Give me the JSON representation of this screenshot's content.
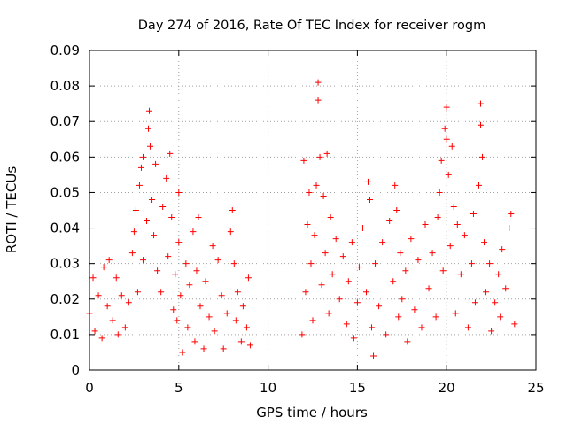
{
  "chart_data": {
    "type": "scatter",
    "title": "Day 274 of 2016, Rate Of TEC Index for receiver rogm",
    "xlabel": "GPS time / hours",
    "ylabel": "ROTI / TECUs",
    "xlim": [
      0,
      25
    ],
    "ylim": [
      0,
      0.09
    ],
    "x_ticks": [
      "0",
      "5",
      "10",
      "15",
      "20",
      "25"
    ],
    "y_ticks": [
      "0",
      "0.01",
      "0.02",
      "0.03",
      "0.04",
      "0.05",
      "0.06",
      "0.07",
      "0.08",
      "0.09"
    ],
    "grid": true,
    "marker": "+",
    "color": "#ff0000",
    "series": [
      {
        "name": "ROTI",
        "points": [
          [
            0.0,
            0.016
          ],
          [
            0.2,
            0.026
          ],
          [
            0.3,
            0.011
          ],
          [
            0.5,
            0.021
          ],
          [
            0.7,
            0.009
          ],
          [
            0.8,
            0.029
          ],
          [
            1.0,
            0.018
          ],
          [
            1.1,
            0.031
          ],
          [
            1.3,
            0.014
          ],
          [
            1.5,
            0.026
          ],
          [
            1.6,
            0.01
          ],
          [
            1.8,
            0.021
          ],
          [
            2.0,
            0.012
          ],
          [
            2.2,
            0.019
          ],
          [
            2.4,
            0.033
          ],
          [
            2.5,
            0.039
          ],
          [
            2.6,
            0.045
          ],
          [
            2.7,
            0.022
          ],
          [
            2.8,
            0.052
          ],
          [
            2.9,
            0.057
          ],
          [
            3.0,
            0.06
          ],
          [
            3.0,
            0.031
          ],
          [
            3.2,
            0.042
          ],
          [
            3.3,
            0.068
          ],
          [
            3.35,
            0.073
          ],
          [
            3.4,
            0.063
          ],
          [
            3.5,
            0.048
          ],
          [
            3.6,
            0.038
          ],
          [
            3.7,
            0.058
          ],
          [
            3.8,
            0.028
          ],
          [
            4.0,
            0.022
          ],
          [
            4.1,
            0.046
          ],
          [
            4.3,
            0.054
          ],
          [
            4.4,
            0.032
          ],
          [
            4.5,
            0.061
          ],
          [
            4.6,
            0.043
          ],
          [
            4.7,
            0.017
          ],
          [
            4.8,
            0.027
          ],
          [
            4.9,
            0.014
          ],
          [
            5.0,
            0.036
          ],
          [
            5.0,
            0.05
          ],
          [
            5.1,
            0.021
          ],
          [
            5.2,
            0.005
          ],
          [
            5.4,
            0.03
          ],
          [
            5.5,
            0.012
          ],
          [
            5.6,
            0.024
          ],
          [
            5.8,
            0.039
          ],
          [
            5.9,
            0.008
          ],
          [
            6.0,
            0.028
          ],
          [
            6.1,
            0.043
          ],
          [
            6.2,
            0.018
          ],
          [
            6.4,
            0.006
          ],
          [
            6.5,
            0.025
          ],
          [
            6.7,
            0.015
          ],
          [
            6.9,
            0.035
          ],
          [
            7.0,
            0.011
          ],
          [
            7.2,
            0.031
          ],
          [
            7.4,
            0.021
          ],
          [
            7.5,
            0.006
          ],
          [
            7.7,
            0.016
          ],
          [
            7.9,
            0.039
          ],
          [
            8.0,
            0.045
          ],
          [
            8.1,
            0.03
          ],
          [
            8.2,
            0.014
          ],
          [
            8.3,
            0.022
          ],
          [
            8.5,
            0.008
          ],
          [
            8.6,
            0.018
          ],
          [
            8.8,
            0.012
          ],
          [
            8.9,
            0.026
          ],
          [
            9.0,
            0.007
          ],
          [
            11.9,
            0.01
          ],
          [
            12.0,
            0.059
          ],
          [
            12.1,
            0.022
          ],
          [
            12.2,
            0.041
          ],
          [
            12.3,
            0.05
          ],
          [
            12.4,
            0.03
          ],
          [
            12.5,
            0.014
          ],
          [
            12.6,
            0.038
          ],
          [
            12.7,
            0.052
          ],
          [
            12.8,
            0.081
          ],
          [
            12.8,
            0.076
          ],
          [
            12.9,
            0.06
          ],
          [
            13.0,
            0.024
          ],
          [
            13.1,
            0.049
          ],
          [
            13.2,
            0.033
          ],
          [
            13.3,
            0.061
          ],
          [
            13.4,
            0.016
          ],
          [
            13.5,
            0.043
          ],
          [
            13.6,
            0.027
          ],
          [
            13.8,
            0.037
          ],
          [
            14.0,
            0.02
          ],
          [
            14.2,
            0.032
          ],
          [
            14.4,
            0.013
          ],
          [
            14.5,
            0.025
          ],
          [
            14.7,
            0.036
          ],
          [
            14.8,
            0.009
          ],
          [
            15.0,
            0.019
          ],
          [
            15.1,
            0.029
          ],
          [
            15.3,
            0.04
          ],
          [
            15.5,
            0.022
          ],
          [
            15.6,
            0.053
          ],
          [
            15.7,
            0.048
          ],
          [
            15.8,
            0.012
          ],
          [
            15.9,
            0.004
          ],
          [
            16.0,
            0.03
          ],
          [
            16.2,
            0.018
          ],
          [
            16.4,
            0.036
          ],
          [
            16.6,
            0.01
          ],
          [
            16.8,
            0.042
          ],
          [
            17.0,
            0.025
          ],
          [
            17.1,
            0.052
          ],
          [
            17.2,
            0.045
          ],
          [
            17.3,
            0.015
          ],
          [
            17.4,
            0.033
          ],
          [
            17.5,
            0.02
          ],
          [
            17.7,
            0.028
          ],
          [
            17.8,
            0.008
          ],
          [
            18.0,
            0.037
          ],
          [
            18.2,
            0.017
          ],
          [
            18.4,
            0.031
          ],
          [
            18.6,
            0.012
          ],
          [
            18.8,
            0.041
          ],
          [
            19.0,
            0.023
          ],
          [
            19.2,
            0.033
          ],
          [
            19.4,
            0.015
          ],
          [
            19.5,
            0.043
          ],
          [
            19.6,
            0.05
          ],
          [
            19.7,
            0.059
          ],
          [
            19.8,
            0.028
          ],
          [
            19.9,
            0.068
          ],
          [
            20.0,
            0.074
          ],
          [
            20.0,
            0.065
          ],
          [
            20.1,
            0.055
          ],
          [
            20.2,
            0.035
          ],
          [
            20.3,
            0.063
          ],
          [
            20.4,
            0.046
          ],
          [
            20.5,
            0.016
          ],
          [
            20.6,
            0.041
          ],
          [
            20.8,
            0.027
          ],
          [
            21.0,
            0.038
          ],
          [
            21.2,
            0.012
          ],
          [
            21.4,
            0.03
          ],
          [
            21.5,
            0.044
          ],
          [
            21.6,
            0.019
          ],
          [
            21.8,
            0.052
          ],
          [
            21.9,
            0.075
          ],
          [
            21.9,
            0.069
          ],
          [
            22.0,
            0.06
          ],
          [
            22.1,
            0.036
          ],
          [
            22.2,
            0.022
          ],
          [
            22.4,
            0.03
          ],
          [
            22.5,
            0.011
          ],
          [
            22.7,
            0.019
          ],
          [
            22.9,
            0.027
          ],
          [
            23.0,
            0.015
          ],
          [
            23.1,
            0.034
          ],
          [
            23.3,
            0.023
          ],
          [
            23.5,
            0.04
          ],
          [
            23.6,
            0.044
          ],
          [
            23.8,
            0.013
          ]
        ]
      }
    ]
  }
}
